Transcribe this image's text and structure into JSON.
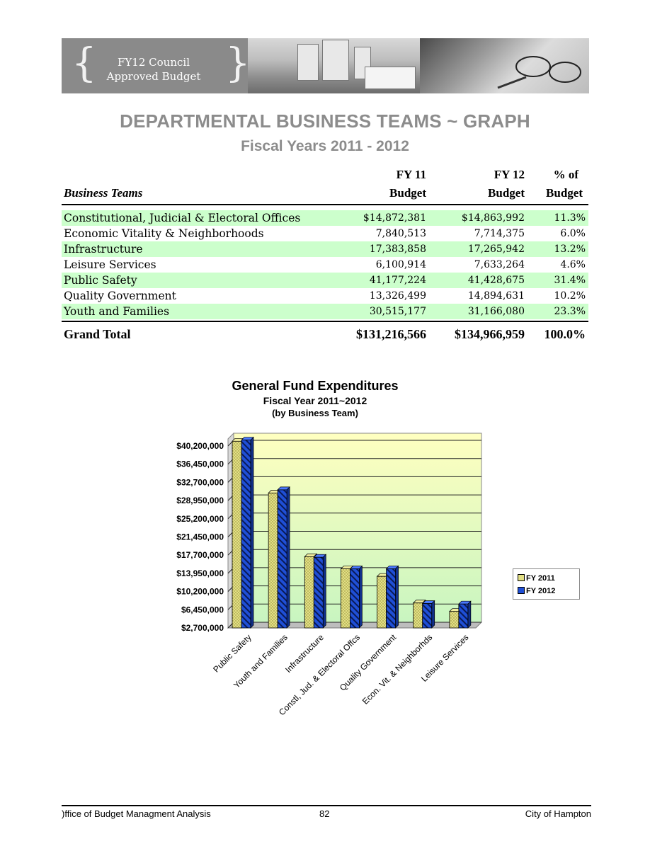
{
  "banner": {
    "line1": "FY12 Council",
    "line2": "Approved Budget"
  },
  "title": "DEPARTMENTAL BUSINESS TEAMS ~ GRAPH",
  "subtitle": "Fiscal Years 2011 - 2012",
  "table": {
    "headers": {
      "business_teams": "Business Teams",
      "fy11_top": "FY 11",
      "fy11_bottom": "Budget",
      "fy12_top": "FY 12",
      "fy12_bottom": "Budget",
      "pct_top": "% of",
      "pct_bottom": "Budget"
    },
    "rows": [
      {
        "name": "Constitutional, Judicial & Electoral Offices",
        "fy11": "$14,872,381",
        "fy12": "$14,863,992",
        "pct": "11.3%"
      },
      {
        "name": "Economic Vitality & Neighborhoods",
        "fy11": "7,840,513",
        "fy12": "7,714,375",
        "pct": "6.0%"
      },
      {
        "name": "Infrastructure",
        "fy11": "17,383,858",
        "fy12": "17,265,942",
        "pct": "13.2%"
      },
      {
        "name": "Leisure Services",
        "fy11": "6,100,914",
        "fy12": "7,633,264",
        "pct": "4.6%"
      },
      {
        "name": "Public Safety",
        "fy11": "41,177,224",
        "fy12": "41,428,675",
        "pct": "31.4%"
      },
      {
        "name": "Quality Government",
        "fy11": "13,326,499",
        "fy12": "14,894,631",
        "pct": "10.2%"
      },
      {
        "name": "Youth and Families",
        "fy11": "30,515,177",
        "fy12": "31,166,080",
        "pct": "23.3%"
      }
    ],
    "total": {
      "label": "Grand Total",
      "fy11": "$131,216,566",
      "fy12": "$134,966,959",
      "pct": "100.0%"
    }
  },
  "colors": {
    "fy2011": "#e2df84",
    "fy2012": "#1f4fd6",
    "highlight_row": "#ccffcc",
    "title_gray": "#8c8c8c"
  },
  "chart_data": {
    "type": "bar",
    "title": "General Fund Expenditures",
    "subtitle": "Fiscal Year 2011~2012",
    "subtitle2": "(by Business Team)",
    "categories": [
      "Public Safety",
      "Youth and Families",
      "Infrastructure",
      "Constl, Jud. & Electoral Offcs",
      "Quality Government",
      "Econ. Vit. & Neighborhds",
      "Leisure Services"
    ],
    "series": [
      {
        "name": "FY 2011",
        "values": [
          41177224,
          30515177,
          17383858,
          14872381,
          13326499,
          7840513,
          6100914
        ]
      },
      {
        "name": "FY 2012",
        "values": [
          41428675,
          31166080,
          17265942,
          14863992,
          14894631,
          7714375,
          7633264
        ]
      }
    ],
    "yticks": [
      "$2,700,000",
      "$6,450,000",
      "$10,200,000",
      "$13,950,000",
      "$17,700,000",
      "$21,450,000",
      "$25,200,000",
      "$28,950,000",
      "$32,700,000",
      "$36,450,000",
      "$40,200,000"
    ],
    "ylim": [
      2700000,
      40200000
    ],
    "legend_position": "right",
    "grid": true
  },
  "footer": {
    "left": ")ffice of Budget Managment Analysis",
    "center": "82",
    "right": "City of Hampton"
  }
}
